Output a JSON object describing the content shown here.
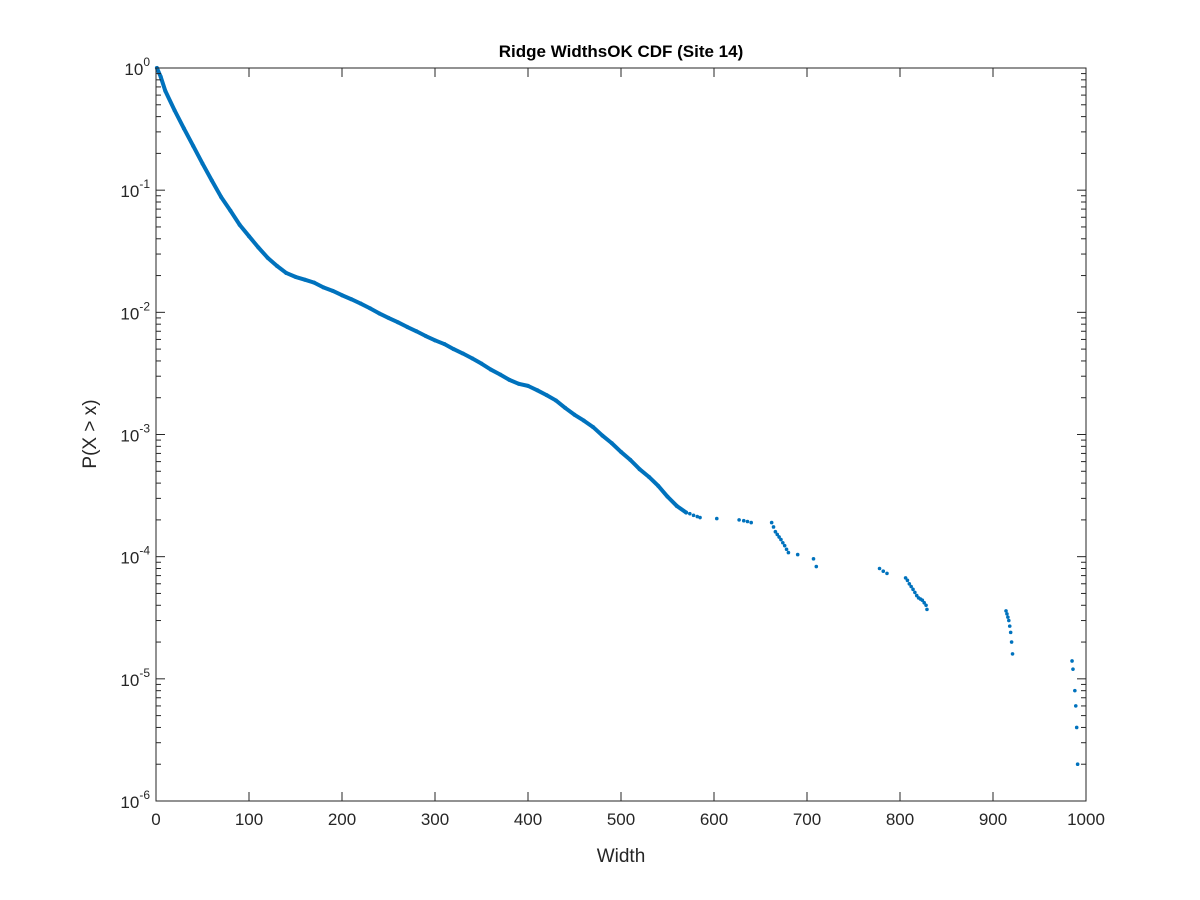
{
  "chart_data": {
    "type": "scatter",
    "title": "Ridge WidthsOK CDF (Site 14)",
    "xlabel": "Width",
    "ylabel": "P(X > x)",
    "xlim": [
      0,
      1000
    ],
    "ylim": [
      1e-06,
      1
    ],
    "y_scale": "log",
    "grid": false,
    "legend": "none",
    "x_ticks": [
      "0",
      "100",
      "200",
      "300",
      "400",
      "500",
      "600",
      "700",
      "800",
      "900",
      "1000"
    ],
    "y_ticks": [
      {
        "base": "10",
        "exp": "-6"
      },
      {
        "base": "10",
        "exp": "-5"
      },
      {
        "base": "10",
        "exp": "-4"
      },
      {
        "base": "10",
        "exp": "-3"
      },
      {
        "base": "10",
        "exp": "-2"
      },
      {
        "base": "10",
        "exp": "-1"
      },
      {
        "base": "10",
        "exp": "0"
      }
    ],
    "series_color": "#0072BD",
    "curve": {
      "x": [
        1,
        5,
        10,
        20,
        30,
        40,
        50,
        60,
        70,
        80,
        90,
        100,
        110,
        120,
        130,
        140,
        150,
        160,
        170,
        180,
        190,
        200,
        210,
        220,
        230,
        240,
        250,
        260,
        270,
        280,
        290,
        300,
        310,
        320,
        330,
        340,
        350,
        360,
        370,
        380,
        390,
        400,
        410,
        420,
        430,
        440,
        450,
        460,
        470,
        480,
        490,
        500,
        510,
        520,
        530,
        540,
        550,
        560,
        570
      ],
      "y": [
        1.0,
        0.85,
        0.65,
        0.45,
        0.32,
        0.23,
        0.165,
        0.12,
        0.088,
        0.068,
        0.052,
        0.042,
        0.034,
        0.028,
        0.024,
        0.021,
        0.0195,
        0.0185,
        0.0175,
        0.016,
        0.015,
        0.0138,
        0.0128,
        0.0118,
        0.0108,
        0.0098,
        0.009,
        0.0083,
        0.0076,
        0.007,
        0.0064,
        0.0059,
        0.0055,
        0.005,
        0.0046,
        0.0042,
        0.0038,
        0.0034,
        0.0031,
        0.0028,
        0.0026,
        0.0025,
        0.0023,
        0.0021,
        0.0019,
        0.00165,
        0.00145,
        0.0013,
        0.00115,
        0.00098,
        0.00085,
        0.00072,
        0.00062,
        0.00052,
        0.00045,
        0.00038,
        0.00031,
        0.00026,
        0.00023
      ]
    },
    "tail_points": {
      "x": [
        574,
        578,
        582,
        585,
        603,
        627,
        632,
        636,
        640,
        662,
        664,
        666,
        668,
        670,
        672,
        674,
        676,
        678,
        680,
        690,
        707,
        710,
        778,
        782,
        786,
        806,
        808,
        810,
        812,
        814,
        816,
        818,
        820,
        822,
        824,
        826,
        828,
        829,
        914,
        915,
        916,
        917,
        918,
        919,
        920,
        921,
        985,
        986,
        988,
        989,
        990,
        991
      ],
      "y": [
        0.000225,
        0.000218,
        0.000213,
        0.000209,
        0.000205,
        0.0002,
        0.000197,
        0.000194,
        0.00019,
        0.00019,
        0.000175,
        0.00016,
        0.000152,
        0.000145,
        0.000138,
        0.00013,
        0.000123,
        0.000115,
        0.000108,
        0.000104,
        9.6e-05,
        8.3e-05,
        8e-05,
        7.6e-05,
        7.3e-05,
        6.7e-05,
        6.4e-05,
        6e-05,
        5.7e-05,
        5.4e-05,
        5.1e-05,
        4.8e-05,
        4.6e-05,
        4.5e-05,
        4.4e-05,
        4.2e-05,
        4e-05,
        3.7e-05,
        3.6e-05,
        3.4e-05,
        3.2e-05,
        3e-05,
        2.7e-05,
        2.4e-05,
        2e-05,
        1.6e-05,
        1.4e-05,
        1.2e-05,
        8e-06,
        6e-06,
        4e-06,
        2e-06
      ]
    }
  }
}
